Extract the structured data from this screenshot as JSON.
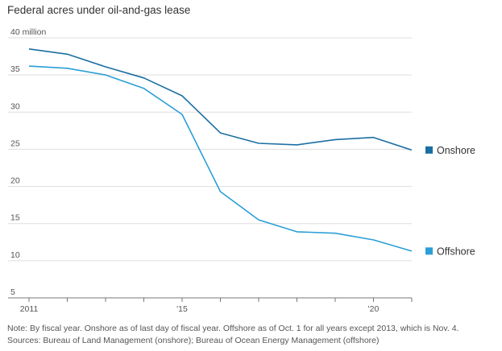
{
  "title": "Federal acres under oil-and-gas lease",
  "note_line1": "Note: By fiscal year. Onshore as of last day of fiscal year. Offshore as of Oct. 1 for all years except 2013, which is Nov. 4.",
  "note_line2": "Sources: Bureau of Land Management (onshore); Bureau of Ocean Energy Management (offshore)",
  "chart_data": {
    "type": "line",
    "title": "Federal acres under oil-and-gas lease",
    "xlabel": "",
    "ylabel": "",
    "xlim": [
      2011,
      2021
    ],
    "ylim": [
      5,
      40
    ],
    "y_ticks": [
      {
        "value": 40,
        "label": "40 million"
      },
      {
        "value": 35,
        "label": "35"
      },
      {
        "value": 30,
        "label": "30"
      },
      {
        "value": 25,
        "label": "25"
      },
      {
        "value": 20,
        "label": "20"
      },
      {
        "value": 15,
        "label": "15"
      },
      {
        "value": 10,
        "label": "10"
      },
      {
        "value": 5,
        "label": "5"
      }
    ],
    "x_ticks": [
      {
        "value": 2011,
        "label": "2011"
      },
      {
        "value": 2015,
        "label": "'15"
      },
      {
        "value": 2020,
        "label": "'20"
      }
    ],
    "grid": "horizontal",
    "legend": "right, inline at line ends",
    "x": [
      2011,
      2012,
      2013,
      2014,
      2015,
      2016,
      2017,
      2018,
      2019,
      2020,
      2021
    ],
    "series": [
      {
        "name": "Onshore",
        "color": "#1a6fa3",
        "values": [
          38.5,
          37.8,
          36.1,
          34.6,
          32.2,
          27.2,
          25.8,
          25.6,
          26.3,
          26.6,
          24.9
        ]
      },
      {
        "name": "Offshore",
        "color": "#2a9fd8",
        "values": [
          36.2,
          35.9,
          35.0,
          33.2,
          29.7,
          19.3,
          15.5,
          13.9,
          13.7,
          12.8,
          11.3
        ]
      }
    ]
  }
}
